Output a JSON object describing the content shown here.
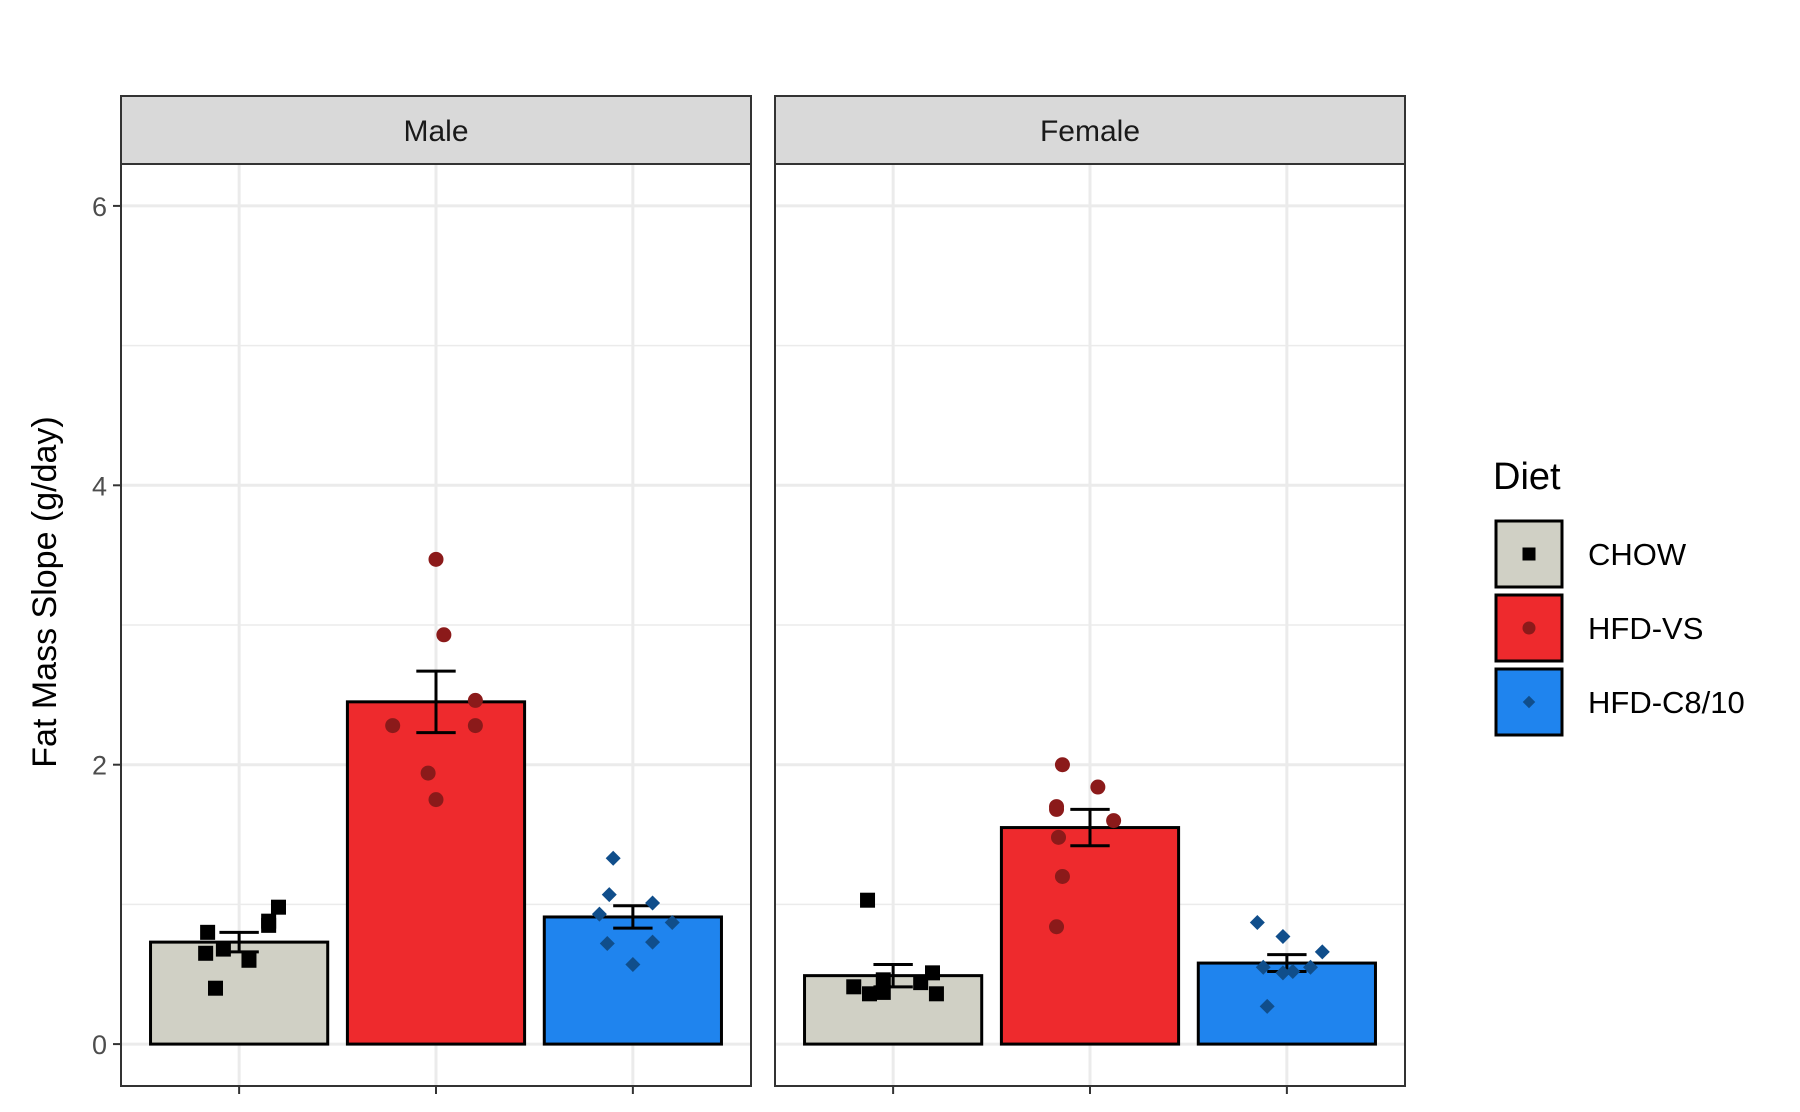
{
  "chart_data": {
    "type": "bar",
    "ylabel": "Fat Mass Slope (g/day)",
    "ylim": [
      -0.3,
      6.3
    ],
    "yticks": [
      0,
      2,
      4,
      6
    ],
    "grid": true,
    "legend": {
      "title": "Diet",
      "placement": "right",
      "entries": [
        {
          "label": "CHOW",
          "fill": "#d0d0c5",
          "point": "#000000",
          "shape": "square"
        },
        {
          "label": "HFD-VS",
          "fill": "#ee2a2d",
          "point": "#8b1a1a",
          "shape": "circle"
        },
        {
          "label": "HFD-C8/10",
          "fill": "#1f84ee",
          "point": "#104e8b",
          "shape": "diamond"
        }
      ]
    },
    "categories": [
      "CHOW",
      "HFD-VS",
      "HFD-C8/10"
    ],
    "panels": [
      {
        "strip": "Male",
        "bars": [
          {
            "group": "CHOW",
            "mean": 0.73,
            "sem": 0.07,
            "points": [
              [
                -0.16,
                0.8
              ],
              [
                -0.17,
                0.65
              ],
              [
                -0.08,
                0.68
              ],
              [
                0.05,
                0.6
              ],
              [
                0.15,
                0.85
              ],
              [
                0.2,
                0.98
              ],
              [
                -0.12,
                0.4
              ],
              [
                0.15,
                0.88
              ]
            ]
          },
          {
            "group": "HFD-VS",
            "mean": 2.45,
            "sem": 0.22,
            "points": [
              [
                0.0,
                3.47
              ],
              [
                0.04,
                2.93
              ],
              [
                0.2,
                2.46
              ],
              [
                -0.22,
                2.28
              ],
              [
                0.2,
                2.28
              ],
              [
                -0.04,
                1.94
              ],
              [
                0.0,
                1.75
              ]
            ]
          },
          {
            "group": "HFD-C8/10",
            "mean": 0.91,
            "sem": 0.08,
            "points": [
              [
                -0.1,
                1.33
              ],
              [
                -0.12,
                1.07
              ],
              [
                0.1,
                1.01
              ],
              [
                -0.17,
                0.93
              ],
              [
                0.2,
                0.87
              ],
              [
                -0.13,
                0.72
              ],
              [
                0.1,
                0.73
              ],
              [
                0.0,
                0.57
              ]
            ]
          }
        ]
      },
      {
        "strip": "Female",
        "bars": [
          {
            "group": "CHOW",
            "mean": 0.49,
            "sem": 0.08,
            "points": [
              [
                -0.13,
                1.03
              ],
              [
                -0.2,
                0.41
              ],
              [
                -0.05,
                0.46
              ],
              [
                -0.12,
                0.36
              ],
              [
                -0.05,
                0.37
              ],
              [
                0.14,
                0.44
              ],
              [
                0.2,
                0.51
              ],
              [
                0.22,
                0.36
              ]
            ]
          },
          {
            "group": "HFD-VS",
            "mean": 1.55,
            "sem": 0.13,
            "points": [
              [
                -0.14,
                2.0
              ],
              [
                0.04,
                1.84
              ],
              [
                -0.17,
                1.7
              ],
              [
                -0.17,
                1.68
              ],
              [
                0.12,
                1.6
              ],
              [
                -0.16,
                1.48
              ],
              [
                -0.14,
                1.2
              ],
              [
                -0.17,
                0.84
              ]
            ]
          },
          {
            "group": "HFD-C8/10",
            "mean": 0.58,
            "sem": 0.06,
            "points": [
              [
                -0.15,
                0.87
              ],
              [
                -0.02,
                0.77
              ],
              [
                0.18,
                0.66
              ],
              [
                -0.12,
                0.55
              ],
              [
                0.12,
                0.55
              ],
              [
                0.03,
                0.52
              ],
              [
                -0.02,
                0.51
              ],
              [
                -0.1,
                0.27
              ]
            ]
          }
        ]
      }
    ]
  }
}
